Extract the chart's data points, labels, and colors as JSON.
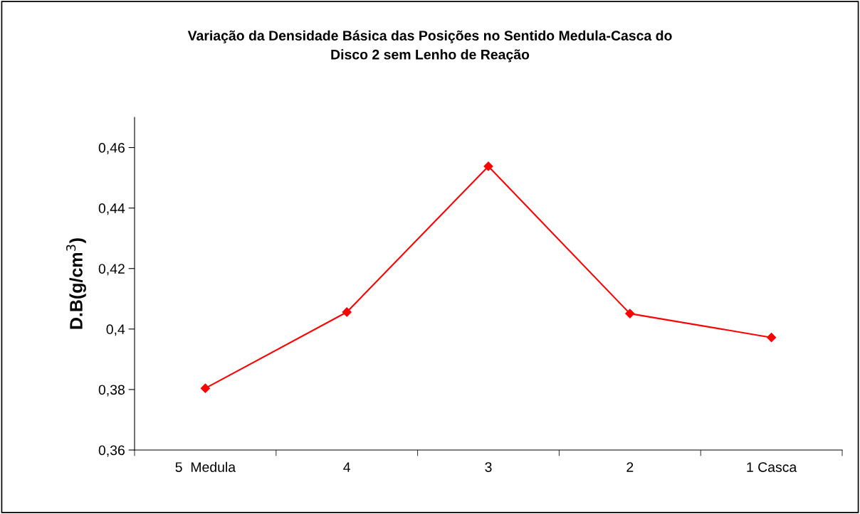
{
  "chart_data": {
    "type": "line",
    "title": "Variação da Densidade Básica das Posições no Sentido Medula-Casca do\nDisco 2 sem Lenho de Reação",
    "ylabel": "D.B(g/cm$^{3}$)",
    "categories": [
      "5  Medula",
      "4",
      "3",
      "2",
      "1 Casca"
    ],
    "series": [
      {
        "color": "#ff0000",
        "values": [
          0.3804,
          0.4056,
          0.4538,
          0.4051,
          0.3972
        ]
      }
    ],
    "ylim": [
      0.36,
      0.47
    ],
    "yticks": [
      {
        "value": 0.36,
        "label": "0,36"
      },
      {
        "value": 0.38,
        "label": "0,38"
      },
      {
        "value": 0.4,
        "label": "0,4"
      },
      {
        "value": 0.42,
        "label": "0,42"
      },
      {
        "value": 0.44,
        "label": "0,44"
      },
      {
        "value": 0.46,
        "label": "0,46"
      }
    ],
    "marker": "diamond",
    "line_style": "solid"
  }
}
